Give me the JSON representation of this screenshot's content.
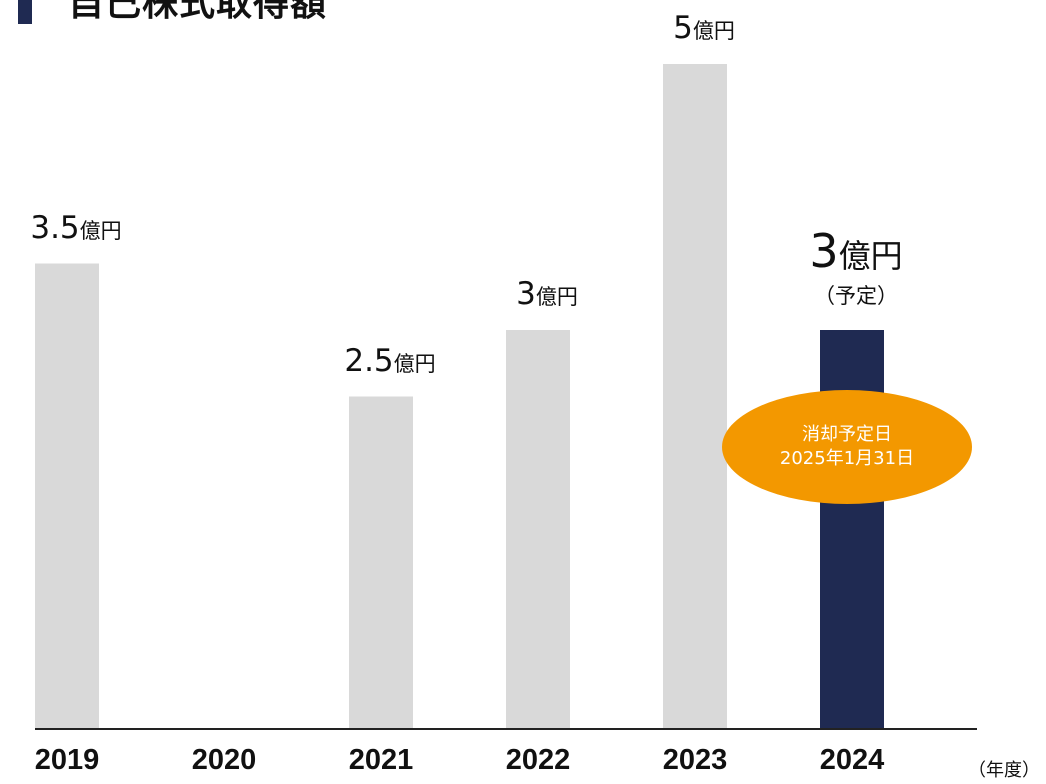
{
  "title": "自己株式取得額",
  "colors": {
    "title_marker": "#1f2a52",
    "bar_default": "#d9d9d9",
    "bar_highlight": "#1f2a52",
    "axis": "#222222",
    "badge": "#f39800"
  },
  "chart_data": {
    "type": "bar",
    "categories": [
      "2019",
      "2020",
      "2021",
      "2022",
      "2023",
      "2024"
    ],
    "values": [
      3.5,
      null,
      2.5,
      3,
      5,
      3
    ],
    "value_labels": [
      "3.5",
      "",
      "2.5",
      "3",
      "5",
      "3"
    ],
    "value_unit": "億円",
    "highlight_index": 5,
    "highlight_note": "（予定）",
    "xlabel": "（年度）",
    "ylabel": "",
    "ylim": [
      0,
      5
    ],
    "grid": false,
    "annotation": {
      "category": "2024",
      "line1": "消却予定日",
      "line2": "2025年1月31日"
    }
  }
}
